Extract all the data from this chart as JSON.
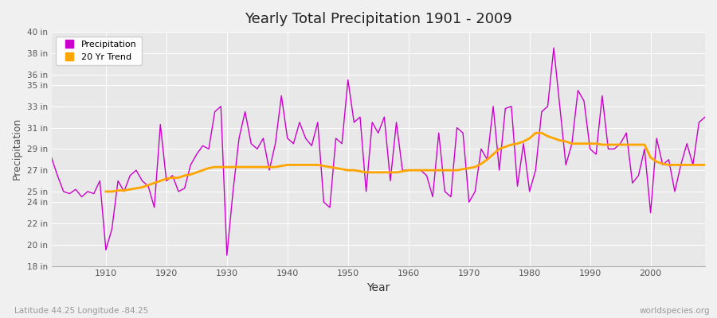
{
  "title": "Yearly Total Precipitation 1901 - 2009",
  "xlabel": "Year",
  "ylabel": "Precipitation",
  "bottom_left_label": "Latitude 44.25 Longitude -84.25",
  "bottom_right_label": "worldspecies.org",
  "precipitation_color": "#cc00cc",
  "trend_color": "#ffa500",
  "background_color": "#f0f0f0",
  "plot_bg_color": "#e8e8e8",
  "grid_color": "#ffffff",
  "ylim": [
    18,
    40
  ],
  "xlim": [
    1901,
    2009
  ],
  "yticks": [
    18,
    20,
    22,
    24,
    25,
    27,
    29,
    31,
    33,
    35,
    36,
    38,
    40
  ],
  "ytick_labels": [
    "18 in",
    "20 in",
    "22 in",
    "24 in",
    "25 in",
    "27 in",
    "29 in",
    "31 in",
    "33 in",
    "35 in",
    "36 in",
    "38 in",
    "40 in"
  ],
  "xticks": [
    1910,
    1920,
    1930,
    1940,
    1950,
    1960,
    1970,
    1980,
    1990,
    2000
  ],
  "years": [
    1901,
    1902,
    1903,
    1904,
    1905,
    1906,
    1907,
    1908,
    1909,
    1910,
    1911,
    1912,
    1913,
    1914,
    1915,
    1916,
    1917,
    1918,
    1919,
    1920,
    1921,
    1922,
    1923,
    1924,
    1925,
    1926,
    1927,
    1928,
    1929,
    1930,
    1931,
    1932,
    1933,
    1934,
    1935,
    1936,
    1937,
    1938,
    1939,
    1940,
    1941,
    1942,
    1943,
    1944,
    1945,
    1946,
    1947,
    1948,
    1949,
    1950,
    1951,
    1952,
    1953,
    1954,
    1955,
    1956,
    1957,
    1958,
    1959,
    1960,
    1961,
    1962,
    1963,
    1964,
    1965,
    1966,
    1967,
    1968,
    1969,
    1970,
    1971,
    1972,
    1973,
    1974,
    1975,
    1976,
    1977,
    1978,
    1979,
    1980,
    1981,
    1982,
    1983,
    1984,
    1985,
    1986,
    1987,
    1988,
    1989,
    1990,
    1991,
    1992,
    1993,
    1994,
    1995,
    1996,
    1997,
    1998,
    1999,
    2000,
    2001,
    2002,
    2003,
    2004,
    2005,
    2006,
    2007,
    2008,
    2009
  ],
  "precip": [
    28.2,
    26.5,
    25.0,
    24.8,
    25.2,
    24.5,
    25.0,
    24.8,
    26.0,
    19.5,
    21.5,
    26.0,
    25.0,
    26.5,
    27.0,
    26.0,
    25.5,
    23.5,
    31.3,
    26.0,
    26.5,
    25.0,
    25.3,
    27.5,
    28.5,
    29.3,
    29.0,
    32.5,
    33.0,
    19.0,
    25.0,
    30.0,
    32.5,
    29.5,
    29.0,
    30.0,
    27.0,
    29.5,
    34.0,
    30.0,
    29.5,
    31.5,
    30.0,
    29.3,
    31.5,
    24.0,
    23.5,
    30.0,
    29.5,
    35.5,
    31.5,
    32.0,
    25.0,
    31.5,
    30.5,
    32.0,
    26.0,
    31.5,
    27.0,
    27.0,
    27.0,
    27.0,
    26.5,
    24.5,
    30.5,
    25.0,
    24.5,
    31.0,
    30.5,
    24.0,
    25.0,
    29.0,
    28.0,
    33.0,
    27.0,
    32.8,
    33.0,
    25.5,
    29.5,
    25.0,
    27.0,
    32.5,
    33.0,
    38.5,
    33.0,
    27.5,
    29.5,
    34.5,
    33.5,
    29.0,
    28.5,
    34.0,
    29.0,
    29.0,
    29.5,
    30.5,
    25.8,
    26.5,
    29.0,
    23.0,
    30.0,
    27.5,
    28.0,
    25.0,
    27.5,
    29.5,
    27.5,
    31.5,
    32.0
  ],
  "trend_years": [
    1910,
    1911,
    1912,
    1913,
    1914,
    1915,
    1916,
    1917,
    1918,
    1919,
    1920,
    1921,
    1922,
    1923,
    1924,
    1925,
    1926,
    1927,
    1928,
    1929,
    1930,
    1931,
    1932,
    1933,
    1934,
    1935,
    1936,
    1937,
    1938,
    1939,
    1940,
    1941,
    1942,
    1943,
    1944,
    1945,
    1946,
    1947,
    1948,
    1949,
    1950,
    1951,
    1952,
    1953,
    1954,
    1955,
    1956,
    1957,
    1958,
    1959,
    1960,
    1961,
    1962,
    1963,
    1964,
    1965,
    1966,
    1967,
    1968,
    1969,
    1970,
    1971,
    1972,
    1973,
    1974,
    1975,
    1976,
    1977,
    1978,
    1979,
    1980,
    1981,
    1982,
    1983,
    1984,
    1985,
    1986,
    1987,
    1988,
    1989,
    1990,
    1991,
    1992,
    1993,
    1994,
    1995,
    1996,
    1997,
    1998,
    1999,
    2000,
    2001,
    2002,
    2003,
    2004,
    2005,
    2006,
    2007,
    2008,
    2009
  ],
  "trend": [
    25.0,
    25.0,
    25.1,
    25.1,
    25.2,
    25.3,
    25.4,
    25.6,
    25.8,
    26.0,
    26.2,
    26.3,
    26.3,
    26.5,
    26.6,
    26.8,
    27.0,
    27.2,
    27.3,
    27.3,
    27.3,
    27.3,
    27.3,
    27.3,
    27.3,
    27.3,
    27.3,
    27.3,
    27.3,
    27.4,
    27.5,
    27.5,
    27.5,
    27.5,
    27.5,
    27.5,
    27.4,
    27.3,
    27.2,
    27.1,
    27.0,
    27.0,
    26.9,
    26.8,
    26.8,
    26.8,
    26.8,
    26.8,
    26.8,
    26.9,
    27.0,
    27.0,
    27.0,
    27.0,
    27.0,
    27.0,
    27.0,
    27.0,
    27.0,
    27.1,
    27.2,
    27.3,
    27.6,
    28.0,
    28.5,
    29.0,
    29.2,
    29.4,
    29.5,
    29.7,
    30.0,
    30.5,
    30.5,
    30.2,
    30.0,
    29.8,
    29.7,
    29.5,
    29.5,
    29.5,
    29.5,
    29.5,
    29.4,
    29.4,
    29.4,
    29.4,
    29.4,
    29.4,
    29.4,
    29.4,
    28.2,
    27.8,
    27.6,
    27.5,
    27.5,
    27.5,
    27.5,
    27.5,
    27.5,
    27.5
  ]
}
